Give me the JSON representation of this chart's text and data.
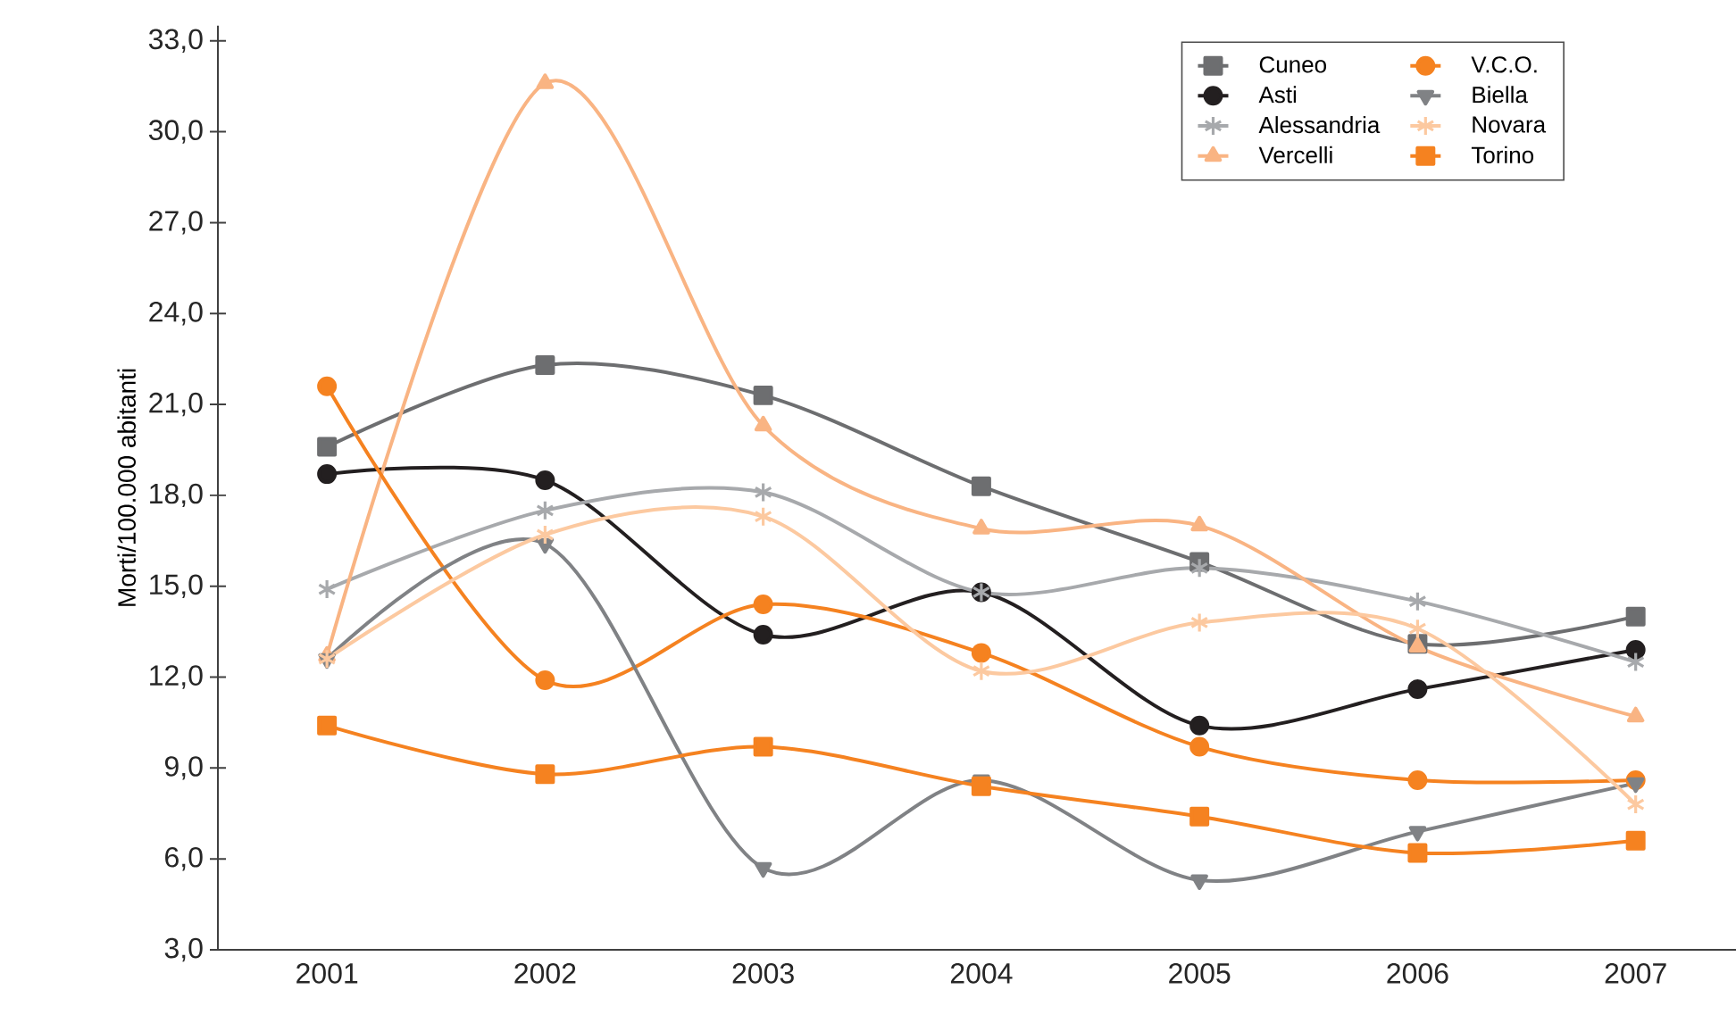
{
  "chart_data": {
    "type": "line",
    "ylabel": "Morti/100.000 abitanti",
    "categories": [
      "2001",
      "2002",
      "2003",
      "2004",
      "2005",
      "2006",
      "2007"
    ],
    "ylim": [
      3,
      33.5
    ],
    "yticks": [
      {
        "value": 3,
        "label": "3,0"
      },
      {
        "value": 6,
        "label": "6,0"
      },
      {
        "value": 9,
        "label": "9,0"
      },
      {
        "value": 12,
        "label": "12,0"
      },
      {
        "value": 15,
        "label": "15,0"
      },
      {
        "value": 18,
        "label": "18,0"
      },
      {
        "value": 21,
        "label": "21,0"
      },
      {
        "value": 24,
        "label": "24,0"
      },
      {
        "value": 27,
        "label": "27,0"
      },
      {
        "value": 30,
        "label": "30,0"
      },
      {
        "value": 33,
        "label": "33,0"
      }
    ],
    "grid": false,
    "legend": "top right",
    "series": [
      {
        "name": "Cuneo",
        "color": "#6d6e70",
        "marker": "square",
        "values": [
          19.6,
          22.3,
          21.3,
          18.3,
          15.8,
          13.1,
          14.0
        ]
      },
      {
        "name": "Asti",
        "color": "#231f20",
        "marker": "circle",
        "values": [
          18.7,
          18.5,
          13.4,
          14.8,
          10.4,
          11.6,
          12.9
        ]
      },
      {
        "name": "Alessandria",
        "color": "#a7a9ac",
        "marker": "cross",
        "values": [
          14.9,
          17.5,
          18.1,
          14.8,
          15.6,
          14.5,
          12.5
        ]
      },
      {
        "name": "Vercelli",
        "color": "#f9b483",
        "marker": "triangle",
        "values": [
          12.7,
          31.6,
          20.3,
          16.9,
          17.0,
          13.0,
          10.7
        ]
      },
      {
        "name": "V.C.O.",
        "color": "#f58220",
        "marker": "circle",
        "values": [
          21.6,
          11.9,
          14.4,
          12.8,
          9.7,
          8.6,
          8.6
        ]
      },
      {
        "name": "Biella",
        "color": "#808285",
        "marker": "triangle-down",
        "values": [
          12.6,
          16.4,
          5.7,
          8.6,
          5.3,
          6.9,
          8.5
        ]
      },
      {
        "name": "Novara",
        "color": "#fcc9a0",
        "marker": "cross",
        "values": [
          12.6,
          16.7,
          17.3,
          12.2,
          13.8,
          13.6,
          7.8
        ]
      },
      {
        "name": "Torino",
        "color": "#f58220",
        "marker": "square",
        "values": [
          10.4,
          8.8,
          9.7,
          8.4,
          7.4,
          6.2,
          6.6
        ]
      }
    ]
  }
}
